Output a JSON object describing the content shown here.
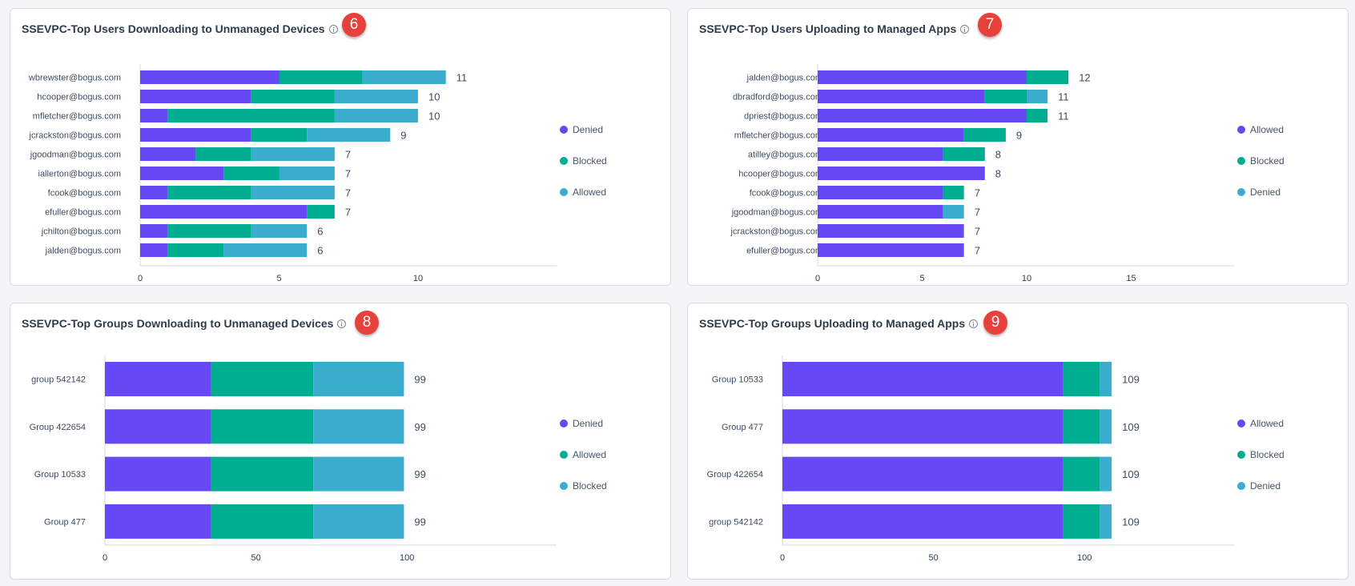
{
  "colors": {
    "purple": "#6649f5",
    "teal": "#00ad91",
    "blue": "#3aadcf"
  },
  "chart_data": [
    {
      "type": "bar",
      "title": "SSEVPC-Top Users Downloading to Unmanaged Devices",
      "badge": "6",
      "categories": [
        "wbrewster@bogus.com",
        "hcooper@bogus.com",
        "mfletcher@bogus.com",
        "jcrackston@bogus.com",
        "jgoodman@bogus.com",
        "iallerton@bogus.com",
        "fcook@bogus.com",
        "efuller@bogus.com",
        "jchilton@bogus.com",
        "jalden@bogus.com"
      ],
      "series": [
        {
          "name": "Denied",
          "color": "#6649f5",
          "values": [
            5,
            4,
            1,
            4,
            2,
            3,
            1,
            6,
            1,
            1
          ]
        },
        {
          "name": "Blocked",
          "color": "#00ad91",
          "values": [
            3,
            3,
            6,
            2,
            2,
            2,
            3,
            1,
            3,
            2
          ]
        },
        {
          "name": "Allowed",
          "color": "#3aadcf",
          "values": [
            3,
            3,
            3,
            3,
            3,
            2,
            3,
            0,
            2,
            3
          ]
        }
      ],
      "totals": [
        "11",
        "10",
        "10",
        "9",
        "7",
        "7",
        "7",
        "7",
        "6",
        "6"
      ],
      "xticks": [
        "0",
        "5",
        "10"
      ],
      "xlim": [
        0,
        15
      ],
      "legend_position": "right"
    },
    {
      "type": "bar",
      "title": "SSEVPC-Top Users Uploading to Managed Apps",
      "badge": "7",
      "categories": [
        "jalden@bogus.com",
        "dbradford@bogus.com",
        "dpriest@bogus.com",
        "mfletcher@bogus.com",
        "atilley@bogus.com",
        "hcooper@bogus.com",
        "fcook@bogus.com",
        "jgoodman@bogus.com",
        "jcrackston@bogus.com",
        "efuller@bogus.com"
      ],
      "series": [
        {
          "name": "Allowed",
          "color": "#6649f5",
          "values": [
            10,
            8,
            10,
            7,
            6,
            8,
            6,
            6,
            7,
            7
          ]
        },
        {
          "name": "Blocked",
          "color": "#00ad91",
          "values": [
            2,
            2,
            1,
            2,
            2,
            0,
            1,
            0,
            0,
            0
          ]
        },
        {
          "name": "Denied",
          "color": "#3aadcf",
          "values": [
            0,
            1,
            0,
            0,
            0,
            0,
            0,
            1,
            0,
            0
          ]
        }
      ],
      "totals": [
        "12",
        "11",
        "11",
        "9",
        "8",
        "8",
        "7",
        "7",
        "7",
        "7"
      ],
      "xticks": [
        "0",
        "5",
        "10",
        "15"
      ],
      "xlim": [
        0,
        20
      ],
      "legend_position": "right"
    },
    {
      "type": "bar",
      "title": "SSEVPC-Top Groups Downloading to Unmanaged Devices",
      "badge": "8",
      "categories": [
        "group 542142",
        "Group 422654",
        "Group 10533",
        "Group 477"
      ],
      "series": [
        {
          "name": "Denied",
          "color": "#6649f5",
          "values": [
            35,
            35,
            35,
            35
          ]
        },
        {
          "name": "Allowed",
          "color": "#00ad91",
          "values": [
            34,
            34,
            34,
            34
          ]
        },
        {
          "name": "Blocked",
          "color": "#3aadcf",
          "values": [
            30,
            30,
            30,
            30
          ]
        }
      ],
      "totals": [
        "99",
        "99",
        "99",
        "99"
      ],
      "xticks": [
        "0",
        "50",
        "100"
      ],
      "xlim": [
        0,
        150
      ],
      "legend_position": "right"
    },
    {
      "type": "bar",
      "title": "SSEVPC-Top Groups Uploading to Managed Apps",
      "badge": "9",
      "categories": [
        "Group 10533",
        "Group 477",
        "Group 422654",
        "group 542142"
      ],
      "series": [
        {
          "name": "Allowed",
          "color": "#6649f5",
          "values": [
            93,
            93,
            93,
            93
          ]
        },
        {
          "name": "Blocked",
          "color": "#00ad91",
          "values": [
            12,
            12,
            12,
            12
          ]
        },
        {
          "name": "Denied",
          "color": "#3aadcf",
          "values": [
            4,
            4,
            4,
            4
          ]
        }
      ],
      "totals": [
        "109",
        "109",
        "109",
        "109"
      ],
      "xticks": [
        "0",
        "50",
        "100"
      ],
      "xlim": [
        0,
        150
      ],
      "legend_position": "right"
    }
  ]
}
